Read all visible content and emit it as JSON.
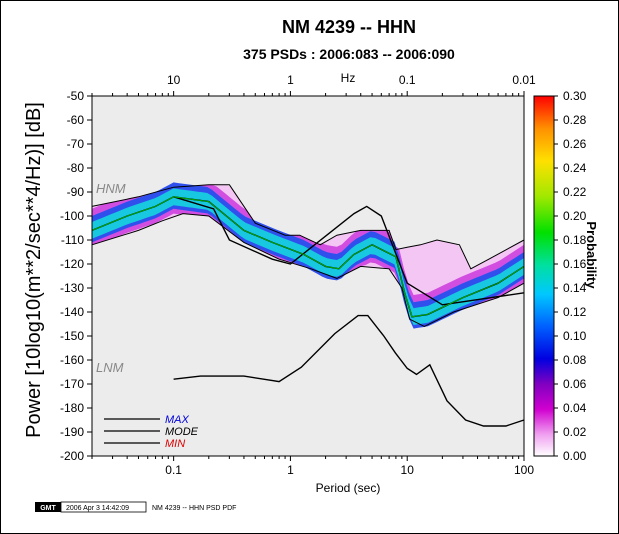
{
  "chart_data": {
    "type": "heatmap",
    "title": "NM 4239 -- HHN",
    "subtitle": "375 PSDs : 2006:083 -- 2006:090",
    "xlabel": "Period (sec)",
    "ylabel": "Power [10log10(m**2/sec**4/Hz)] [dB]",
    "top_axis_label": "Hz",
    "x_scale": "log",
    "xlim": [
      0.02,
      100
    ],
    "ylim": [
      -200,
      -50
    ],
    "x_ticks": [
      {
        "value": 0.1,
        "label": "0.1"
      },
      {
        "value": 1,
        "label": "1"
      },
      {
        "value": 10,
        "label": "10"
      },
      {
        "value": 100,
        "label": "100"
      }
    ],
    "top_ticks": [
      {
        "value": 0.1,
        "label": "10"
      },
      {
        "value": 1,
        "label": "1"
      },
      {
        "value": 10,
        "label": "0.1"
      },
      {
        "value": 100,
        "label": "0.01"
      }
    ],
    "y_ticks": [
      -50,
      -60,
      -70,
      -80,
      -90,
      -100,
      -110,
      -120,
      -130,
      -140,
      -150,
      -160,
      -170,
      -180,
      -190,
      -200
    ],
    "colorbar": {
      "label": "Probability",
      "range": [
        0,
        0.3
      ],
      "ticks": [
        "0.00",
        "0.02",
        "0.04",
        "0.06",
        "0.08",
        "0.10",
        "0.12",
        "0.14",
        "0.16",
        "0.18",
        "0.20",
        "0.22",
        "0.24",
        "0.26",
        "0.28",
        "0.30"
      ]
    },
    "noise_models": [
      {
        "name": "HNM",
        "points": [
          [
            0.1,
            -92
          ],
          [
            0.22,
            -97
          ],
          [
            0.3,
            -110
          ],
          [
            0.7,
            -118
          ],
          [
            1.0,
            -120
          ],
          [
            3.5,
            -99
          ],
          [
            4.5,
            -96
          ],
          [
            6.0,
            -100
          ],
          [
            10.0,
            -128
          ],
          [
            20.0,
            -137
          ],
          [
            100.0,
            -132
          ]
        ]
      },
      {
        "name": "LNM",
        "points": [
          [
            0.1,
            -168
          ],
          [
            0.17,
            -166.7
          ],
          [
            0.4,
            -166.7
          ],
          [
            0.8,
            -169
          ],
          [
            1.24,
            -163
          ],
          [
            2.4,
            -149
          ],
          [
            3.8,
            -141.5
          ],
          [
            4.6,
            -141.5
          ],
          [
            6.3,
            -150
          ],
          [
            7.9,
            -157
          ],
          [
            10.0,
            -163.5
          ],
          [
            12.0,
            -166
          ],
          [
            15.6,
            -162
          ],
          [
            21.9,
            -177
          ],
          [
            31.6,
            -185
          ],
          [
            45.0,
            -187.5
          ],
          [
            70.0,
            -187.5
          ],
          [
            100.0,
            -185
          ]
        ]
      }
    ],
    "series": [
      {
        "name": "MAX",
        "points": [
          [
            0.02,
            -96
          ],
          [
            0.05,
            -92
          ],
          [
            0.1,
            -88
          ],
          [
            0.2,
            -87
          ],
          [
            0.3,
            -87
          ],
          [
            0.5,
            -103
          ],
          [
            0.9,
            -108
          ],
          [
            1.2,
            -108
          ],
          [
            1.8,
            -112
          ],
          [
            2.5,
            -108
          ],
          [
            4.0,
            -106
          ],
          [
            7.0,
            -106
          ],
          [
            8.0,
            -114
          ],
          [
            10.0,
            -113
          ],
          [
            13.0,
            -112
          ],
          [
            18.0,
            -110
          ],
          [
            28.0,
            -112
          ],
          [
            35.0,
            -122
          ],
          [
            50.0,
            -118
          ],
          [
            100.0,
            -110
          ]
        ]
      },
      {
        "name": "MODE",
        "points": [
          [
            0.02,
            -106
          ],
          [
            0.04,
            -100
          ],
          [
            0.07,
            -96
          ],
          [
            0.1,
            -92
          ],
          [
            0.2,
            -94
          ],
          [
            0.4,
            -106
          ],
          [
            0.7,
            -111
          ],
          [
            1.3,
            -116
          ],
          [
            2.0,
            -121
          ],
          [
            2.6,
            -122
          ],
          [
            3.5,
            -116
          ],
          [
            5.0,
            -112
          ],
          [
            8.0,
            -117
          ],
          [
            9.5,
            -132
          ],
          [
            11.0,
            -142
          ],
          [
            15.0,
            -141
          ],
          [
            30.0,
            -134
          ],
          [
            60.0,
            -128
          ],
          [
            100.0,
            -121
          ]
        ]
      },
      {
        "name": "MIN",
        "points": [
          [
            0.02,
            -112
          ],
          [
            0.05,
            -106
          ],
          [
            0.08,
            -102
          ],
          [
            0.12,
            -99
          ],
          [
            0.2,
            -100
          ],
          [
            0.4,
            -111
          ],
          [
            0.8,
            -118
          ],
          [
            1.5,
            -122
          ],
          [
            2.5,
            -126
          ],
          [
            4.0,
            -121
          ],
          [
            7.0,
            -122
          ],
          [
            9.0,
            -130
          ],
          [
            10.5,
            -143
          ],
          [
            14.0,
            -146
          ],
          [
            25.0,
            -140
          ],
          [
            60.0,
            -134
          ],
          [
            100.0,
            -128
          ]
        ]
      }
    ],
    "legend": [
      {
        "label": "MAX",
        "color": "#0000dd"
      },
      {
        "label": "MODE",
        "color": "#000000"
      },
      {
        "label": "MIN",
        "color": "#dd0000"
      }
    ],
    "legend_position": "bottom-left"
  },
  "colors": {
    "background": "#ffffff",
    "plot_background": "#ececec",
    "curve": "#000000",
    "mode_center": "#00cc00",
    "hnm_lnm_label": "#888888"
  },
  "footer": {
    "logo_text": "GMT",
    "timestamp": "2006 Apr  3 14:42:09",
    "caption": "NM 4239 -- HHN PSD PDF"
  }
}
